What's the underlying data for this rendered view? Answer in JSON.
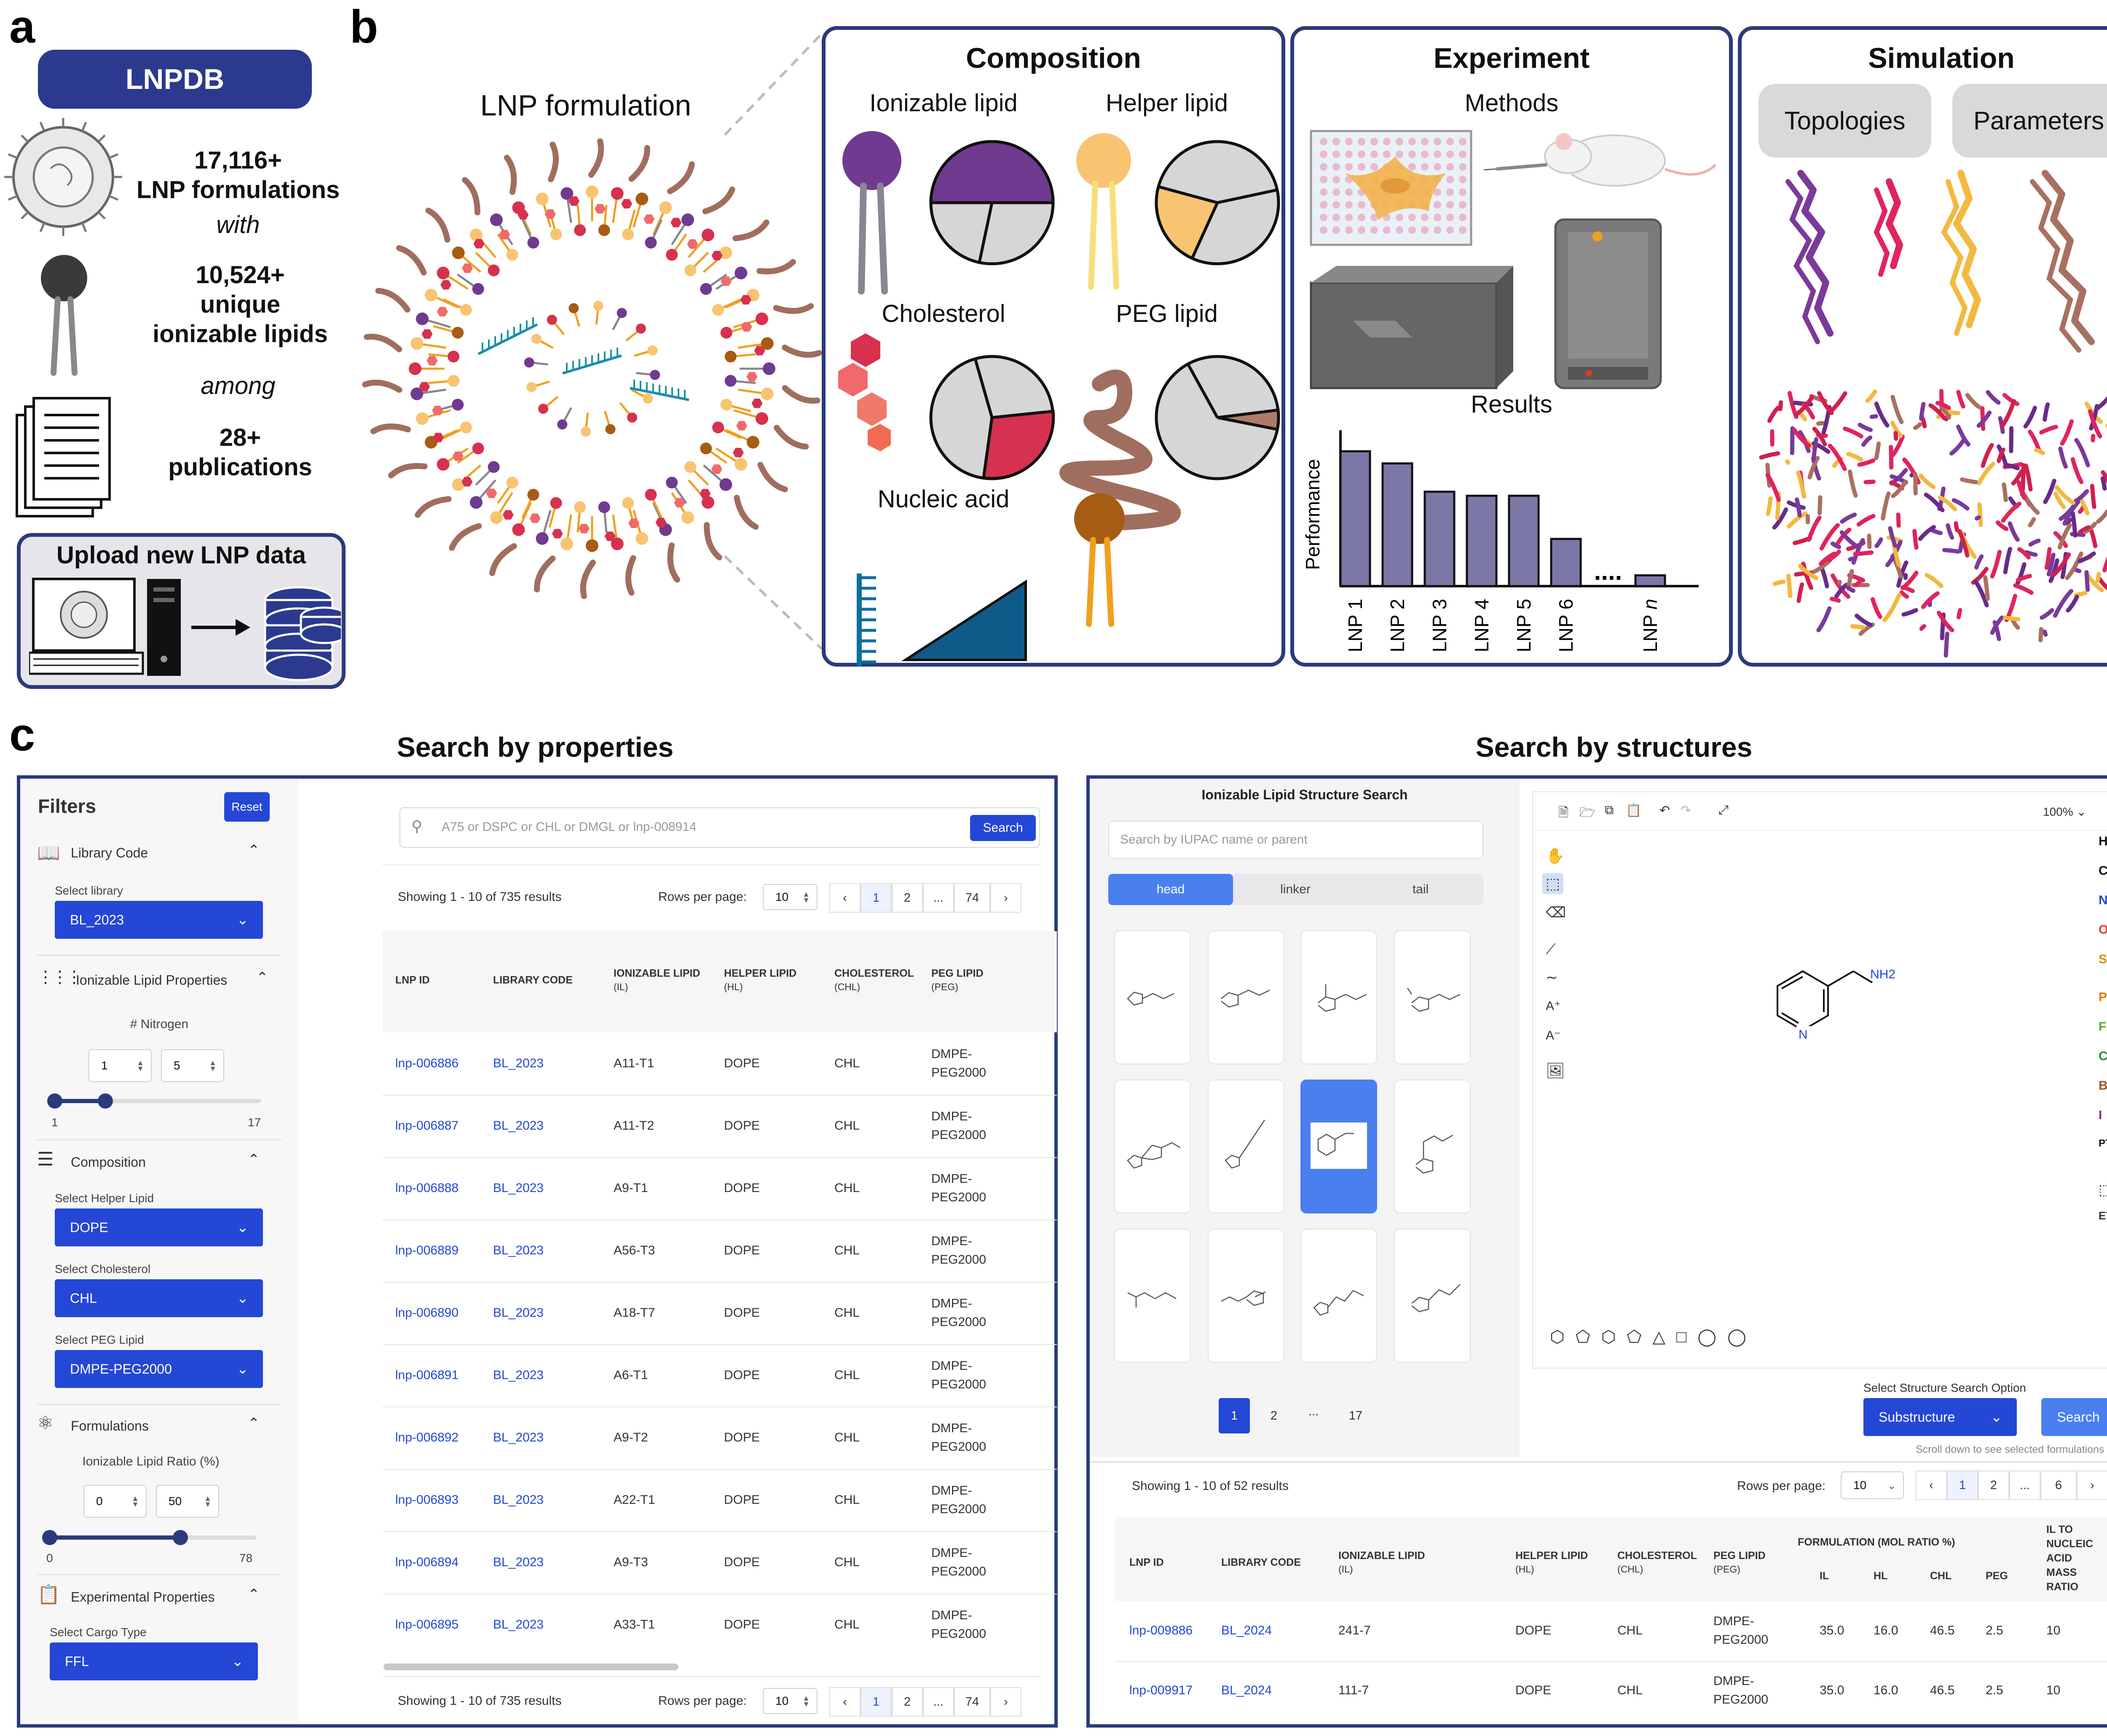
{
  "panels": {
    "a": "a",
    "b": "b",
    "c": "c"
  },
  "panel_a": {
    "badge": "LNPDB",
    "stat1_num": "17,116+",
    "stat1_text": "LNP formulations",
    "with": "with",
    "stat2_num": "10,524+",
    "stat2_line1": "unique",
    "stat2_line2": "ionizable lipids",
    "among": "among",
    "stat3_num": "28+",
    "stat3_text": "publications",
    "upload_title": "Upload new LNP data"
  },
  "panel_b": {
    "formulation_title": "LNP formulation",
    "composition": {
      "title": "Composition",
      "ionizable": "Ionizable lipid",
      "helper": "Helper lipid",
      "cholesterol": "Cholesterol",
      "peg": "PEG lipid",
      "nucleic": "Nucleic acid",
      "colors": {
        "ionizable": "#6f3a8f",
        "helper": "#f8c471",
        "cholesterol": "#d6314e",
        "peg": "#b07a6a",
        "nucleic": "#0e5b8a"
      }
    },
    "experiment": {
      "title": "Experiment",
      "methods": "Methods",
      "results": "Results",
      "ylabel": "Performance",
      "dots": "....",
      "bar_color": "#7b78a8"
    },
    "simulation": {
      "title": "Simulation",
      "pill1": "Topologies",
      "pill2": "Parameters"
    }
  },
  "chart_data": {
    "type": "bar",
    "categories": [
      "LNP 1",
      "LNP 2",
      "LNP 3",
      "LNP 4",
      "LNP 5",
      "LNP 6",
      "LNP n"
    ],
    "values": [
      100,
      91,
      70,
      67,
      67,
      35,
      8
    ],
    "ylabel": "Performance",
    "title": "Results"
  },
  "panel_c": {
    "left_title": "Search by properties",
    "right_title": "Search by structures",
    "filters": {
      "title": "Filters",
      "reset": "Reset",
      "library_code": "Library Code",
      "select_library": "Select library",
      "library_value": "BL_2023",
      "il_props": "Ionizable Lipid Properties",
      "nitrogen": "# Nitrogen",
      "n_min": "1",
      "n_max": "5",
      "n_lo": "1",
      "n_hi": "17",
      "composition": "Composition",
      "sel_helper": "Select Helper Lipid",
      "helper_value": "DOPE",
      "sel_chol": "Select Cholesterol",
      "chol_value": "CHL",
      "sel_peg": "Select PEG Lipid",
      "peg_value": "DMPE-PEG2000",
      "formulations": "Formulations",
      "il_ratio": "Ionizable Lipid Ratio (%)",
      "r_min": "0",
      "r_max": "50",
      "r_lo": "0",
      "r_hi": "78",
      "exp_props": "Experimental Properties",
      "sel_cargo": "Select Cargo Type",
      "cargo_value": "FFL"
    },
    "search": {
      "placeholder": "A75 or DSPC or CHL or DMGL or lnp-008914",
      "button": "Search",
      "showing": "Showing 1 - 10 of 735 results",
      "rows_label": "Rows per page:",
      "rows_value": "10",
      "pages": [
        "1",
        "2",
        "...",
        "74"
      ]
    },
    "table": {
      "headers": [
        {
          "main": "LNP ID",
          "sub": ""
        },
        {
          "main": "LIBRARY CODE",
          "sub": ""
        },
        {
          "main": "IONIZABLE LIPID",
          "sub": "(IL)"
        },
        {
          "main": "HELPER LIPID",
          "sub": "(HL)"
        },
        {
          "main": "CHOLESTEROL",
          "sub": "(CHL)"
        },
        {
          "main": "PEG LIPID",
          "sub": "(PEG)"
        }
      ],
      "rows": [
        [
          "lnp-006886",
          "BL_2023",
          "A11-T1",
          "DOPE",
          "CHL",
          "DMPE-",
          "PEG2000"
        ],
        [
          "lnp-006887",
          "BL_2023",
          "A11-T2",
          "DOPE",
          "CHL",
          "DMPE-",
          "PEG2000"
        ],
        [
          "lnp-006888",
          "BL_2023",
          "A9-T1",
          "DOPE",
          "CHL",
          "DMPE-",
          "PEG2000"
        ],
        [
          "lnp-006889",
          "BL_2023",
          "A56-T3",
          "DOPE",
          "CHL",
          "DMPE-",
          "PEG2000"
        ],
        [
          "lnp-006890",
          "BL_2023",
          "A18-T7",
          "DOPE",
          "CHL",
          "DMPE-",
          "PEG2000"
        ],
        [
          "lnp-006891",
          "BL_2023",
          "A6-T1",
          "DOPE",
          "CHL",
          "DMPE-",
          "PEG2000"
        ],
        [
          "lnp-006892",
          "BL_2023",
          "A9-T2",
          "DOPE",
          "CHL",
          "DMPE-",
          "PEG2000"
        ],
        [
          "lnp-006893",
          "BL_2023",
          "A22-T1",
          "DOPE",
          "CHL",
          "DMPE-",
          "PEG2000"
        ],
        [
          "lnp-006894",
          "BL_2023",
          "A9-T3",
          "DOPE",
          "CHL",
          "DMPE-",
          "PEG2000"
        ],
        [
          "lnp-006895",
          "BL_2023",
          "A33-T1",
          "DOPE",
          "CHL",
          "DMPE-",
          "PEG2000"
        ]
      ]
    },
    "structure": {
      "title": "Ionizable Lipid Structure Search",
      "placeholder": "Search by IUPAC name or parent",
      "tabs": [
        "head",
        "linker",
        "tail"
      ],
      "pages": [
        "1",
        "2",
        "...",
        "17"
      ],
      "zoom": "100%",
      "nh2": "NH2",
      "n": "N",
      "elements": [
        "H",
        "C",
        "N",
        "O",
        "S",
        "P",
        "F",
        "Cl",
        "Br",
        "I",
        "PT"
      ],
      "element_colors": [
        "#111111",
        "#111111",
        "#2447d6",
        "#e53b2f",
        "#d68b00",
        "#e07b00",
        "#4caf2a",
        "#2e8b3a",
        "#a0522d",
        "#8a2a8a",
        "#111111"
      ],
      "option_label": "Select Structure Search Option",
      "option_value": "Substructure",
      "search": "Search",
      "scroll_hint": "Scroll down to see selected formulations",
      "showing": "Showing 1 - 10 of 52 results",
      "rows_label": "Rows per page:",
      "rows_value": "10",
      "res_pages": [
        "1",
        "2",
        "...",
        "6"
      ],
      "headers": [
        {
          "main": "LNP ID",
          "sub": ""
        },
        {
          "main": "LIBRARY CODE",
          "sub": ""
        },
        {
          "main": "IONIZABLE LIPID",
          "sub": "(IL)"
        },
        {
          "main": "HELPER LIPID",
          "sub": "(HL)"
        },
        {
          "main": "CHOLESTEROL",
          "sub": "(CHL)"
        },
        {
          "main": "PEG LIPID",
          "sub": "(PEG)"
        }
      ],
      "formulation_header": "FORMULATION (MOL RATIO %)",
      "form_cols": [
        "IL",
        "HL",
        "CHL",
        "PEG"
      ],
      "mass_ratio": [
        "IL TO",
        "NUCLEIC",
        "ACID",
        "MASS",
        "RATIO"
      ],
      "rows": [
        [
          "lnp-009886",
          "BL_2024",
          "241-7",
          "DOPE",
          "CHL",
          "DMPE-",
          "PEG2000",
          "35.0",
          "16.0",
          "46.5",
          "2.5",
          "10"
        ],
        [
          "lnp-009917",
          "BL_2024",
          "111-7",
          "DOPE",
          "CHL",
          "DMPE-",
          "PEG2000",
          "35.0",
          "16.0",
          "46.5",
          "2.5",
          "10"
        ]
      ]
    }
  }
}
